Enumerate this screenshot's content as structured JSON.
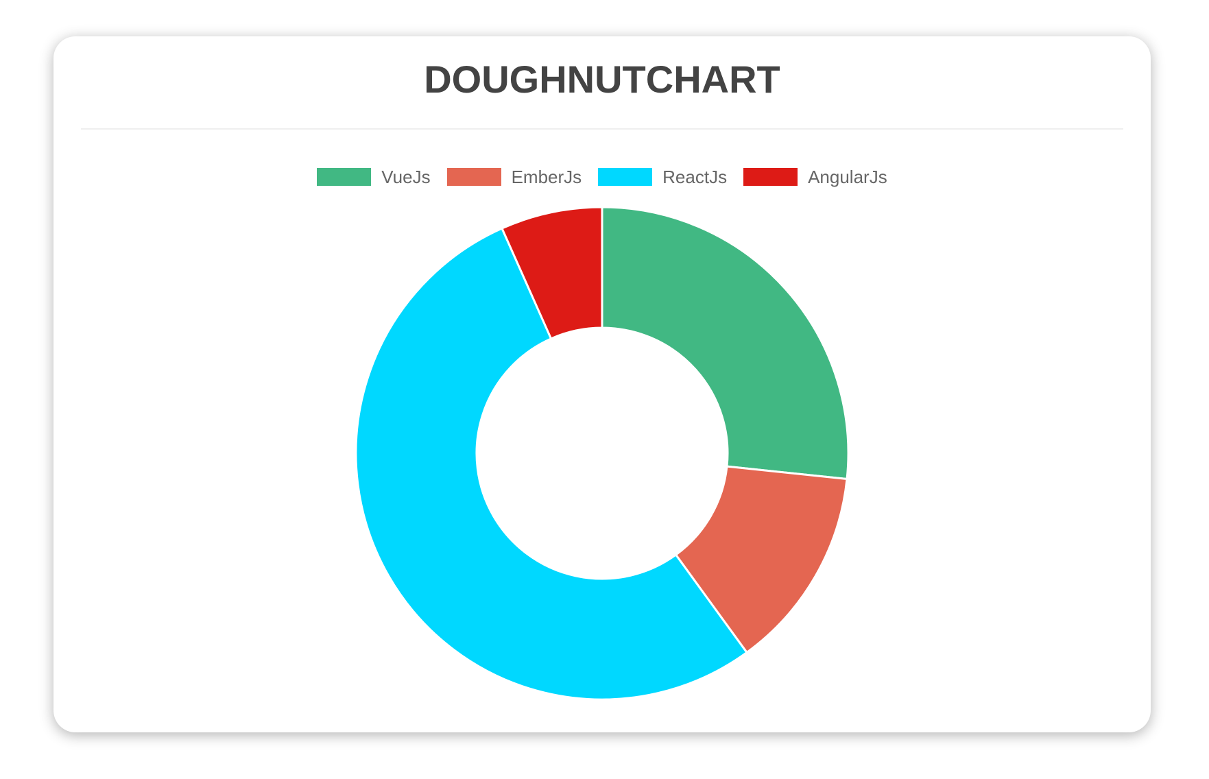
{
  "card": {
    "title": "DOUGHNUTCHART"
  },
  "legend": {
    "items": [
      {
        "label": "VueJs",
        "color": "#41B883"
      },
      {
        "label": "EmberJs",
        "color": "#E46651"
      },
      {
        "label": "ReactJs",
        "color": "#00D8FF"
      },
      {
        "label": "AngularJs",
        "color": "#DD1B16"
      }
    ]
  },
  "chart_data": {
    "type": "pie",
    "variant": "doughnut",
    "title": "DOUGHNUTCHART",
    "labels": [
      "VueJs",
      "EmberJs",
      "ReactJs",
      "AngularJs"
    ],
    "values": [
      40,
      20,
      80,
      10
    ],
    "colors": [
      "#41B883",
      "#E46651",
      "#00D8FF",
      "#DD1B16"
    ],
    "start_angle_deg": 0,
    "direction": "clockwise",
    "cutout_ratio": 0.51,
    "border_color": "#ffffff",
    "border_width": 3,
    "legend_position": "top"
  }
}
